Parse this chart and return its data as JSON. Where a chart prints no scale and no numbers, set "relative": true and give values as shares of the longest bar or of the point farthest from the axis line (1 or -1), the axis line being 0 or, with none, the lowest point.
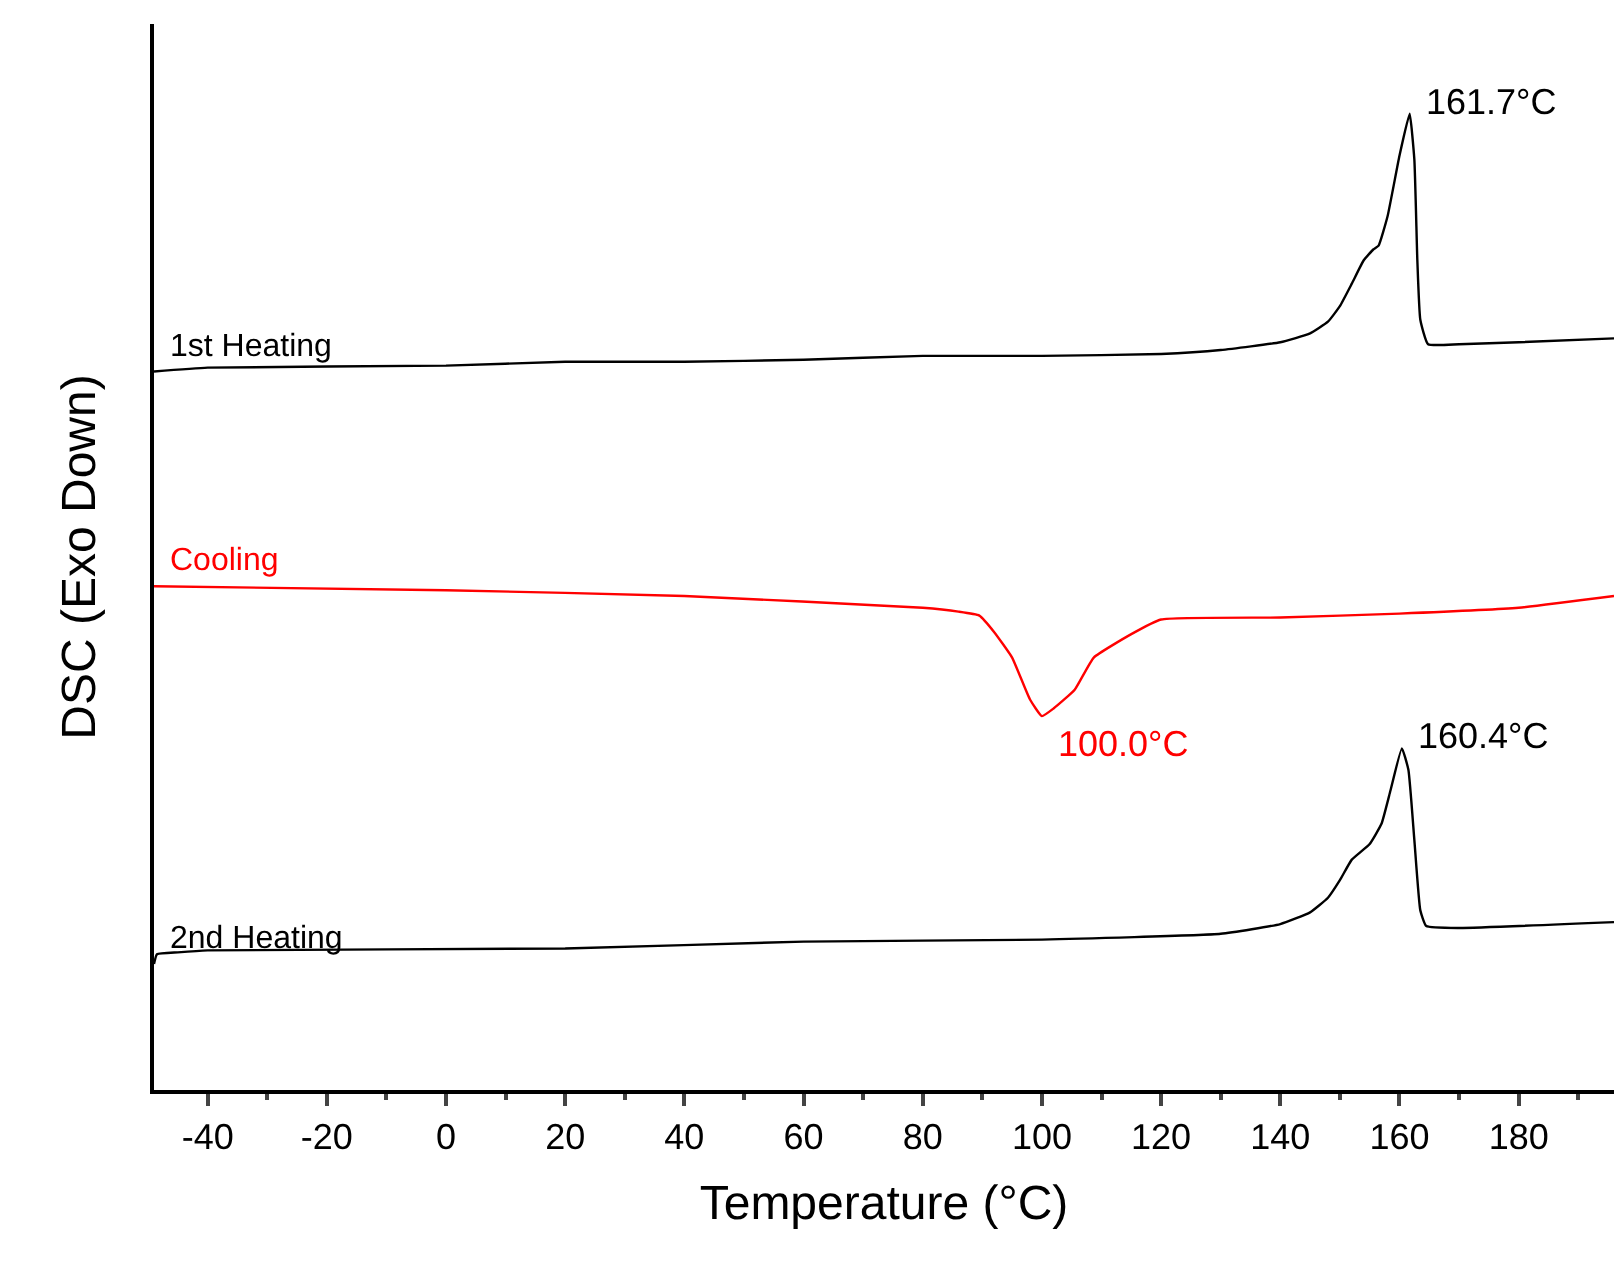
{
  "chart_data": {
    "type": "line",
    "xlabel": "Temperature (°C)",
    "ylabel": "DSC (Exo Down)",
    "relative": true,
    "legend": false,
    "xlim": [
      -49,
      196
    ],
    "xticks": [
      -40,
      -20,
      0,
      20,
      40,
      60,
      80,
      100,
      120,
      140,
      160,
      180
    ],
    "series": [
      {
        "name": "1st Heating",
        "color": "#000000",
        "x": [
          -49,
          -40,
          0,
          20,
          40,
          60,
          80,
          100,
          120,
          130,
          140,
          145,
          148,
          150,
          152,
          154,
          155.6,
          156.5,
          158,
          160,
          161.7,
          162.5,
          163,
          163.5,
          164.8,
          170,
          180,
          196
        ],
        "values": [
          0.736,
          0.74,
          0.742,
          0.746,
          0.746,
          0.748,
          0.752,
          0.752,
          0.754,
          0.758,
          0.766,
          0.775,
          0.787,
          0.803,
          0.826,
          0.85,
          0.861,
          0.865,
          0.895,
          0.957,
          1.0,
          0.953,
          0.85,
          0.789,
          0.764,
          0.764,
          0.766,
          0.77
        ]
      },
      {
        "name": "Cooling",
        "color": "#ff0000",
        "x": [
          -49,
          0,
          40,
          80,
          86,
          89.5,
          92,
          95,
          98,
          100,
          102,
          105.5,
          108.7,
          115,
          120,
          140,
          160,
          180,
          196
        ],
        "values": [
          0.516,
          0.512,
          0.506,
          0.494,
          0.49,
          0.486,
          0.469,
          0.443,
          0.4,
          0.383,
          0.391,
          0.41,
          0.443,
          0.467,
          0.482,
          0.484,
          0.488,
          0.494,
          0.506
        ]
      },
      {
        "name": "2nd Heating",
        "color": "#000000",
        "x": [
          -49,
          -48.5,
          -45,
          -40,
          20,
          60,
          100,
          130,
          140,
          145,
          148,
          150,
          152,
          155,
          157,
          158.5,
          160.4,
          161.5,
          162.5,
          163.5,
          164.5,
          170,
          196
        ],
        "values": [
          0.129,
          0.139,
          0.141,
          0.143,
          0.145,
          0.152,
          0.154,
          0.16,
          0.17,
          0.182,
          0.197,
          0.215,
          0.236,
          0.252,
          0.273,
          0.307,
          0.35,
          0.328,
          0.256,
          0.184,
          0.168,
          0.166,
          0.172
        ]
      }
    ],
    "annotations": [
      {
        "text": "161.7°C",
        "x": 161.7,
        "y": 1.0
      },
      {
        "text": "100.0°C",
        "x": 100.0,
        "y": 0.383
      },
      {
        "text": "160.4°C",
        "x": 160.4,
        "y": 0.35
      }
    ]
  }
}
